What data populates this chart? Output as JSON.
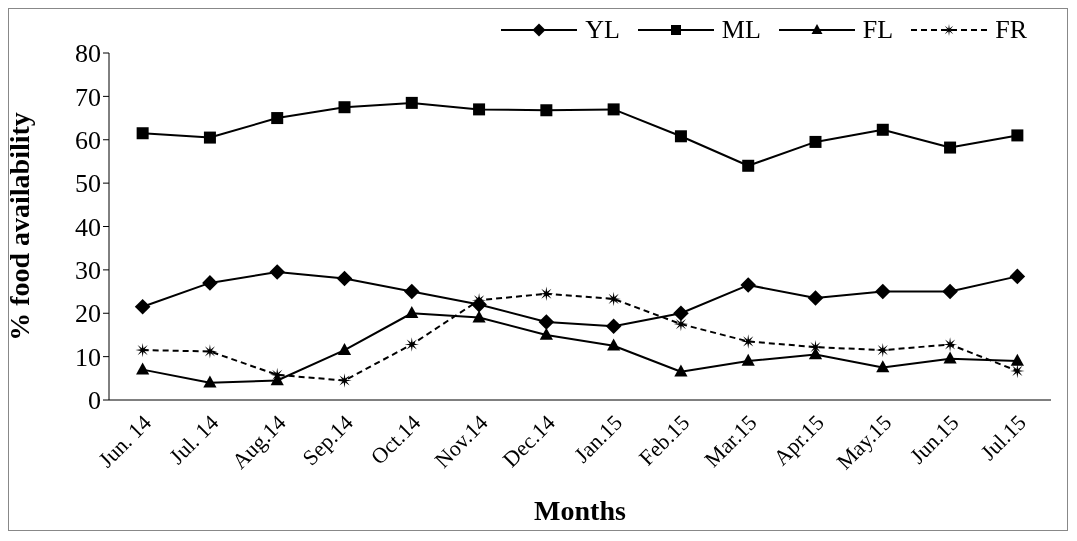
{
  "chart_data": {
    "type": "line",
    "xlabel": "Months",
    "ylabel": "% food availability",
    "categories": [
      "Jun. 14",
      "Jul. 14",
      "Aug.14",
      "Sep.14",
      "Oct.14",
      "Nov.14",
      "Dec.14",
      "Jan.15",
      "Feb.15",
      "Mar.15",
      "Apr.15",
      "May.15",
      "Jun.15",
      "Jul.15"
    ],
    "series": [
      {
        "name": "YL",
        "color": "#000000",
        "marker": "diamond",
        "line_style": "solid",
        "values": [
          21.5,
          27,
          29.5,
          28,
          25,
          22,
          18,
          17,
          20,
          26.5,
          23.5,
          25,
          25,
          28.5
        ]
      },
      {
        "name": "ML",
        "color": "#000000",
        "marker": "square",
        "line_style": "solid",
        "values": [
          61.5,
          60.5,
          65,
          67.5,
          68.5,
          67,
          66.8,
          67,
          60.8,
          54,
          59.5,
          62.3,
          58.2,
          61
        ]
      },
      {
        "name": "FL",
        "color": "#000000",
        "marker": "triangle",
        "line_style": "solid",
        "values": [
          7,
          4,
          4.5,
          11.5,
          20,
          19,
          15,
          12.5,
          6.5,
          9,
          10.5,
          7.5,
          9.5,
          9
        ]
      },
      {
        "name": "FR",
        "color": "#000000",
        "marker": "star",
        "line_style": "dashed",
        "values": [
          11.5,
          11.2,
          5.8,
          4.5,
          12.8,
          23,
          24.5,
          23.3,
          17.5,
          13.5,
          12.2,
          11.5,
          12.8,
          6.7
        ]
      }
    ],
    "ylim": [
      0,
      80
    ],
    "yticks": [
      0,
      10,
      20,
      30,
      40,
      50,
      60,
      70,
      80
    ],
    "grid": false,
    "legend": "top right"
  }
}
